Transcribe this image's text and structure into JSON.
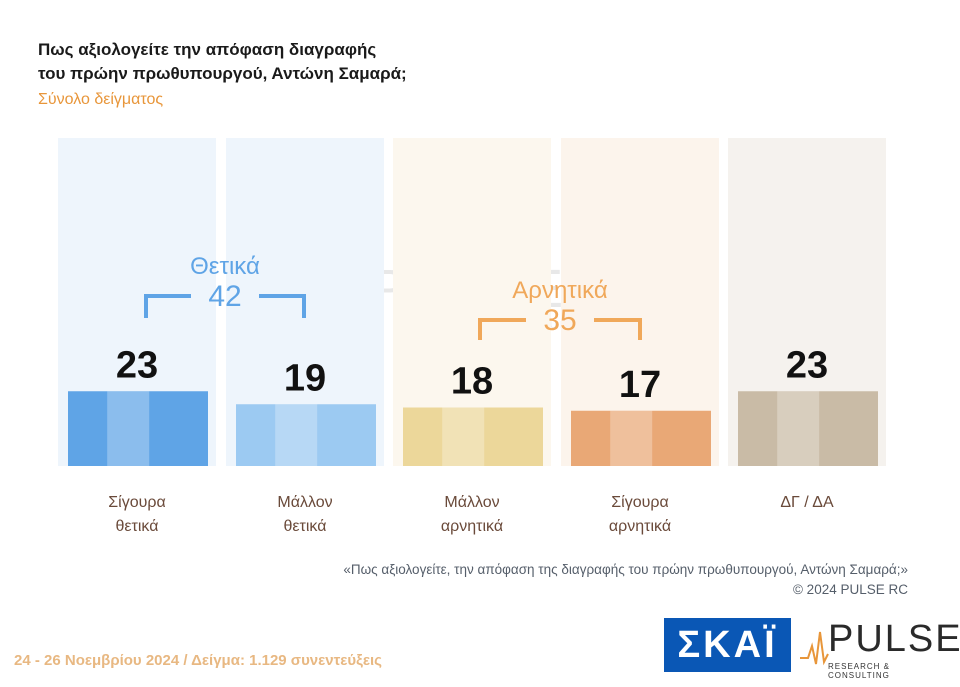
{
  "title_lines": [
    "Πως αξιολογείτε  την απόφαση διαγραφής",
    "του πρώην πρωθυπουργού, Αντώνη Σαμαρά;"
  ],
  "subtitle": "Σύνολο δείγματος",
  "chart_data": {
    "type": "bar",
    "categories": [
      [
        "Σίγουρα",
        "θετικά"
      ],
      [
        "Μάλλον",
        "θετικά"
      ],
      [
        "Μάλλον",
        "αρνητικά"
      ],
      [
        "Σίγουρα",
        "αρνητικά"
      ],
      [
        "ΔΓ / ΔΑ"
      ]
    ],
    "values": [
      23,
      19,
      18,
      17,
      23
    ],
    "colors": [
      "#5fa4e6",
      "#9ccaf2",
      "#ecd79a",
      "#e9a876",
      "#c9bba6"
    ],
    "groups": [
      {
        "label": "Θετικά",
        "value": "42",
        "color": "#5fa4e6"
      },
      {
        "label": "Αρνητικά",
        "value": "35",
        "color": "#f0a85a"
      }
    ]
  },
  "watermark": {
    "brand": "PULSE",
    "tagline": "RESEARCH & CONSULTING"
  },
  "footnote": {
    "question": "«Πως αξιολογείτε, την απόφαση της διαγραφής του πρώην πρωθυπουργού, Αντώνη Σαμαρά;»",
    "copyright": "©  2024  PULSE RC"
  },
  "footer": {
    "text": "24 - 26 Νοεμβρίου 2024  /  Δείγμα:  1.129 συνεντεύξεις"
  },
  "logos": {
    "skai": "ΣΚΑΪ",
    "pulse": "PULSE",
    "pulse_sub": "RESEARCH & CONSULTING"
  }
}
